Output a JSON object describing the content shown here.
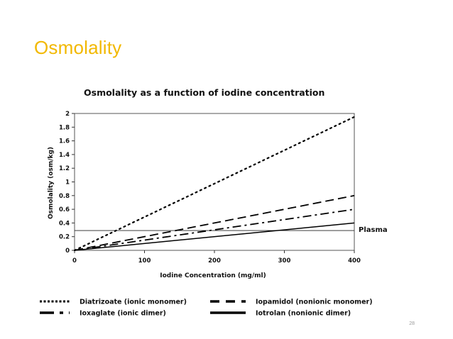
{
  "slide": {
    "title": "Osmolality",
    "page_number": "28"
  },
  "chart_data": {
    "type": "line",
    "title": "Osmolality as a function of iodine concentration",
    "xlabel": "Iodine Concentration (mg/ml)",
    "ylabel": "Osmolality (osm/kg)",
    "xlim": [
      0,
      400
    ],
    "ylim": [
      0,
      2
    ],
    "xticks": [
      0,
      100,
      200,
      300,
      400
    ],
    "yticks": [
      0,
      0.2,
      0.4,
      0.6,
      0.8,
      1,
      1.2,
      1.4,
      1.6,
      1.8,
      2
    ],
    "ytick_labels": [
      "0",
      "0.2",
      "0.4",
      "0.6",
      "0.8",
      "1",
      "1.2",
      "1.4",
      "1.6",
      "1.8",
      "2"
    ],
    "grid": false,
    "series": [
      {
        "name": "Diatrizoate (ionic monomer)",
        "style": "dotted",
        "x": [
          0,
          400
        ],
        "y": [
          0,
          1.95
        ]
      },
      {
        "name": "Iopamidol (nonionic monomer)",
        "style": "dashed",
        "x": [
          0,
          400
        ],
        "y": [
          0,
          0.8
        ]
      },
      {
        "name": "Ioxaglate (ionic dimer)",
        "style": "dashdot",
        "x": [
          0,
          400
        ],
        "y": [
          0,
          0.6
        ]
      },
      {
        "name": "Iotrolan (nonionic dimer)",
        "style": "solid",
        "x": [
          0,
          400
        ],
        "y": [
          0,
          0.4
        ]
      }
    ],
    "reference_line": {
      "label": "Plasma",
      "y": 0.29
    },
    "legend_position": "bottom"
  }
}
